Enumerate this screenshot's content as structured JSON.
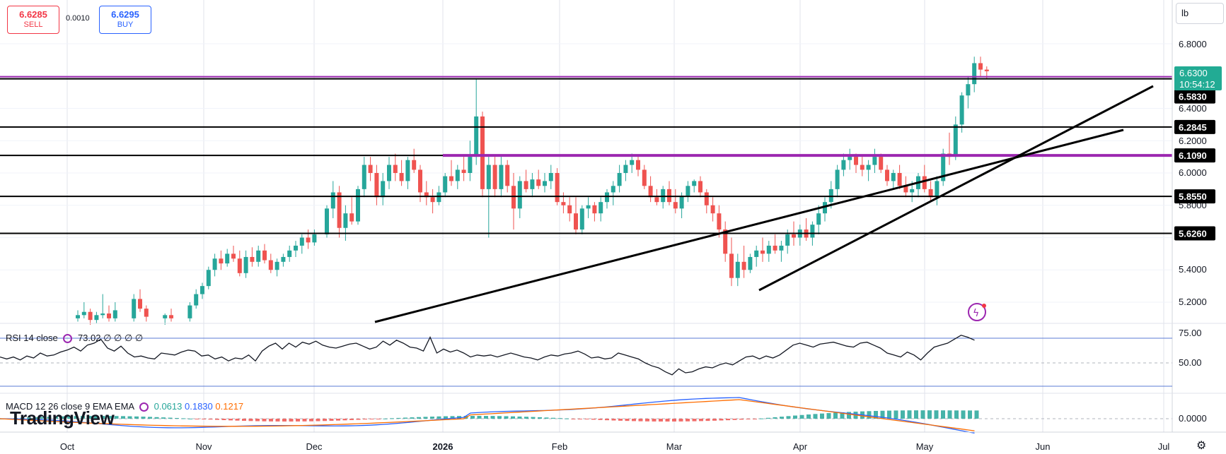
{
  "header": {
    "sell_price": "6.6285",
    "sell_label": "SELL",
    "spread": "0.0010",
    "buy_price": "6.6295",
    "buy_label": "BUY",
    "unit": "lb"
  },
  "rsi_legend": {
    "name": "RSI 14 close",
    "value": "73.02",
    "extra": "∅ ∅ ∅ ∅"
  },
  "macd_legend": {
    "name": "MACD 12 26 close 9 EMA EMA",
    "v1": "0.0613",
    "v2": "0.1830",
    "v3": "0.1217"
  },
  "branding": {
    "logo": "TradingView"
  },
  "colors": {
    "up": "#26a69a",
    "down": "#ef5350",
    "purple": "#9c27b0",
    "macd": "#2962ff",
    "signal": "#ff6d00",
    "blue_line": "#5b7bd5"
  },
  "chart_data": {
    "type": "candlestick",
    "price_axis": {
      "ticks": [
        "6.8000",
        "6.4000",
        "6.2000",
        "6.0000",
        "5.8000",
        "5.4000",
        "5.2000"
      ],
      "range": [
        5.05,
        6.85
      ]
    },
    "time_axis": {
      "ticks": [
        "Oct",
        "Nov",
        "Dec",
        "2026",
        "Feb",
        "Mar",
        "Apr",
        "May",
        "Jun",
        "Jul"
      ]
    },
    "current_price": {
      "value": "6.6300",
      "countdown": "10:54:12"
    },
    "level_labels": [
      "6.5830",
      "6.2845",
      "6.1090",
      "5.8550",
      "5.6260"
    ],
    "candles": [
      [
        0,
        5.1,
        5.15,
        5.08,
        5.12
      ],
      [
        1,
        5.12,
        5.2,
        5.1,
        5.14
      ],
      [
        2,
        5.14,
        5.16,
        5.06,
        5.09
      ],
      [
        3,
        5.09,
        5.14,
        5.07,
        5.12
      ],
      [
        4,
        5.12,
        5.25,
        5.1,
        5.13
      ],
      [
        5,
        5.13,
        5.18,
        5.08,
        5.1
      ],
      [
        6,
        5.1,
        5.2,
        5.08,
        5.15
      ],
      [
        9,
        5.1,
        5.25,
        5.08,
        5.22
      ],
      [
        10,
        5.22,
        5.28,
        5.14,
        5.16
      ],
      [
        11,
        5.16,
        5.18,
        5.08,
        5.11
      ],
      [
        14,
        5.1,
        5.13,
        5.06,
        5.12
      ],
      [
        15,
        5.12,
        5.16,
        5.08,
        5.1
      ],
      [
        18,
        5.1,
        5.2,
        5.08,
        5.18
      ],
      [
        19,
        5.18,
        5.28,
        5.16,
        5.25
      ],
      [
        20,
        5.25,
        5.32,
        5.22,
        5.3
      ],
      [
        21,
        5.3,
        5.42,
        5.28,
        5.4
      ],
      [
        22,
        5.4,
        5.5,
        5.36,
        5.47
      ],
      [
        23,
        5.47,
        5.52,
        5.4,
        5.44
      ],
      [
        24,
        5.44,
        5.53,
        5.42,
        5.5
      ],
      [
        25,
        5.5,
        5.55,
        5.45,
        5.47
      ],
      [
        26,
        5.47,
        5.52,
        5.36,
        5.38
      ],
      [
        27,
        5.38,
        5.52,
        5.35,
        5.48
      ],
      [
        28,
        5.48,
        5.54,
        5.42,
        5.45
      ],
      [
        29,
        5.45,
        5.55,
        5.42,
        5.52
      ],
      [
        30,
        5.52,
        5.56,
        5.44,
        5.46
      ],
      [
        31,
        5.46,
        5.5,
        5.38,
        5.4
      ],
      [
        32,
        5.4,
        5.47,
        5.36,
        5.45
      ],
      [
        33,
        5.45,
        5.5,
        5.42,
        5.48
      ],
      [
        34,
        5.48,
        5.55,
        5.45,
        5.52
      ],
      [
        35,
        5.52,
        5.58,
        5.48,
        5.55
      ],
      [
        36,
        5.55,
        5.62,
        5.5,
        5.6
      ],
      [
        37,
        5.6,
        5.65,
        5.53,
        5.57
      ],
      [
        38,
        5.57,
        5.65,
        5.55,
        5.62
      ],
      [
        40,
        5.62,
        5.8,
        5.6,
        5.78
      ],
      [
        41,
        5.78,
        5.95,
        5.72,
        5.88
      ],
      [
        42,
        5.88,
        5.92,
        5.6,
        5.66
      ],
      [
        43,
        5.66,
        5.8,
        5.58,
        5.75
      ],
      [
        44,
        5.75,
        5.85,
        5.68,
        5.7
      ],
      [
        45,
        5.7,
        5.92,
        5.68,
        5.9
      ],
      [
        46,
        5.9,
        6.1,
        5.85,
        6.05
      ],
      [
        47,
        6.05,
        6.1,
        5.95,
        6.0
      ],
      [
        48,
        6.0,
        6.05,
        5.8,
        5.85
      ],
      [
        49,
        5.85,
        6.0,
        5.8,
        5.95
      ],
      [
        50,
        5.95,
        6.1,
        5.9,
        6.05
      ],
      [
        51,
        6.05,
        6.12,
        5.95,
        6.0
      ],
      [
        52,
        6.0,
        6.08,
        5.92,
        5.95
      ],
      [
        53,
        5.95,
        6.1,
        5.9,
        6.08
      ],
      [
        54,
        6.08,
        6.15,
        6.0,
        6.02
      ],
      [
        55,
        6.02,
        6.05,
        5.82,
        5.88
      ],
      [
        56,
        5.88,
        5.95,
        5.8,
        5.85
      ],
      [
        57,
        5.85,
        5.9,
        5.75,
        5.82
      ],
      [
        58,
        5.82,
        5.92,
        5.8,
        5.88
      ],
      [
        59,
        5.88,
        6.0,
        5.85,
        5.98
      ],
      [
        60,
        5.98,
        6.08,
        5.92,
        5.95
      ],
      [
        61,
        5.95,
        6.05,
        5.9,
        6.02
      ],
      [
        62,
        6.02,
        6.1,
        5.95,
        6.0
      ],
      [
        63,
        6.0,
        6.2,
        5.95,
        6.1
      ],
      [
        64,
        6.1,
        6.58,
        6.05,
        6.35
      ],
      [
        65,
        6.35,
        6.38,
        5.85,
        5.9
      ],
      [
        66,
        5.9,
        6.1,
        5.6,
        6.05
      ],
      [
        67,
        6.05,
        6.1,
        5.85,
        5.9
      ],
      [
        68,
        5.9,
        6.1,
        5.85,
        6.05
      ],
      [
        69,
        6.05,
        6.08,
        5.88,
        5.92
      ],
      [
        70,
        5.92,
        6.0,
        5.65,
        5.78
      ],
      [
        71,
        5.78,
        5.98,
        5.72,
        5.95
      ],
      [
        72,
        5.95,
        6.02,
        5.88,
        5.9
      ],
      [
        73,
        5.9,
        6.0,
        5.85,
        5.96
      ],
      [
        74,
        5.96,
        6.02,
        5.9,
        5.92
      ],
      [
        75,
        5.92,
        6.0,
        5.88,
        5.95
      ],
      [
        76,
        5.95,
        6.05,
        5.9,
        6.0
      ],
      [
        77,
        6.0,
        6.03,
        5.8,
        5.82
      ],
      [
        78,
        5.82,
        5.88,
        5.75,
        5.8
      ],
      [
        79,
        5.8,
        5.85,
        5.7,
        5.75
      ],
      [
        80,
        5.75,
        5.85,
        5.62,
        5.65
      ],
      [
        81,
        5.65,
        5.8,
        5.62,
        5.78
      ],
      [
        82,
        5.78,
        5.85,
        5.72,
        5.8
      ],
      [
        83,
        5.8,
        5.82,
        5.7,
        5.75
      ],
      [
        84,
        5.75,
        5.85,
        5.7,
        5.82
      ],
      [
        85,
        5.82,
        5.9,
        5.78,
        5.88
      ],
      [
        86,
        5.88,
        5.95,
        5.8,
        5.92
      ],
      [
        87,
        5.92,
        6.05,
        5.88,
        6.0
      ],
      [
        88,
        6.0,
        6.08,
        5.95,
        6.05
      ],
      [
        89,
        6.05,
        6.12,
        6.0,
        6.08
      ],
      [
        90,
        6.08,
        6.1,
        5.98,
        6.02
      ],
      [
        91,
        6.02,
        6.05,
        5.9,
        5.92
      ],
      [
        92,
        5.92,
        5.98,
        5.82,
        5.85
      ],
      [
        93,
        5.85,
        5.9,
        5.8,
        5.82
      ],
      [
        94,
        5.82,
        5.92,
        5.78,
        5.9
      ],
      [
        95,
        5.9,
        5.95,
        5.8,
        5.82
      ],
      [
        96,
        5.82,
        5.9,
        5.75,
        5.78
      ],
      [
        97,
        5.78,
        5.88,
        5.72,
        5.86
      ],
      [
        98,
        5.86,
        5.95,
        5.82,
        5.92
      ],
      [
        99,
        5.92,
        5.96,
        5.88,
        5.95
      ],
      [
        100,
        5.95,
        5.98,
        5.85,
        5.88
      ],
      [
        101,
        5.88,
        5.9,
        5.75,
        5.8
      ],
      [
        102,
        5.8,
        5.85,
        5.7,
        5.75
      ],
      [
        103,
        5.75,
        5.8,
        5.6,
        5.65
      ],
      [
        104,
        5.65,
        5.7,
        5.45,
        5.5
      ],
      [
        105,
        5.5,
        5.6,
        5.3,
        5.35
      ],
      [
        106,
        5.35,
        5.5,
        5.3,
        5.45
      ],
      [
        107,
        5.45,
        5.55,
        5.35,
        5.4
      ],
      [
        108,
        5.4,
        5.5,
        5.38,
        5.48
      ],
      [
        109,
        5.48,
        5.55,
        5.42,
        5.52
      ],
      [
        110,
        5.52,
        5.6,
        5.45,
        5.5
      ],
      [
        111,
        5.5,
        5.58,
        5.45,
        5.55
      ],
      [
        112,
        5.55,
        5.62,
        5.5,
        5.52
      ],
      [
        113,
        5.52,
        5.58,
        5.45,
        5.55
      ],
      [
        114,
        5.55,
        5.65,
        5.5,
        5.62
      ],
      [
        115,
        5.62,
        5.7,
        5.55,
        5.6
      ],
      [
        116,
        5.6,
        5.68,
        5.55,
        5.65
      ],
      [
        117,
        5.65,
        5.72,
        5.58,
        5.6
      ],
      [
        118,
        5.6,
        5.7,
        5.55,
        5.68
      ],
      [
        119,
        5.68,
        5.8,
        5.62,
        5.75
      ],
      [
        120,
        5.75,
        5.85,
        5.7,
        5.82
      ],
      [
        121,
        5.82,
        5.95,
        5.78,
        5.9
      ],
      [
        122,
        5.9,
        6.05,
        5.85,
        6.02
      ],
      [
        123,
        6.02,
        6.12,
        5.98,
        6.08
      ],
      [
        124,
        6.08,
        6.15,
        6.02,
        6.1
      ],
      [
        125,
        6.1,
        6.12,
        6.0,
        6.05
      ],
      [
        126,
        6.05,
        6.1,
        5.98,
        6.02
      ],
      [
        127,
        6.02,
        6.08,
        5.95,
        6.05
      ],
      [
        128,
        6.05,
        6.15,
        6.0,
        6.1
      ],
      [
        129,
        6.1,
        6.12,
        6.0,
        6.02
      ],
      [
        130,
        6.02,
        6.05,
        5.92,
        5.95
      ],
      [
        131,
        5.95,
        6.02,
        5.9,
        6.0
      ],
      [
        132,
        6.0,
        6.05,
        5.9,
        5.92
      ],
      [
        133,
        5.92,
        5.98,
        5.85,
        5.88
      ],
      [
        134,
        5.88,
        5.95,
        5.82,
        5.9
      ],
      [
        135,
        5.9,
        6.0,
        5.85,
        5.98
      ],
      [
        136,
        5.98,
        6.05,
        5.88,
        5.9
      ],
      [
        137,
        5.9,
        5.95,
        5.82,
        5.85
      ],
      [
        138,
        5.85,
        5.98,
        5.8,
        5.95
      ],
      [
        139,
        5.95,
        6.15,
        5.92,
        6.12
      ],
      [
        140,
        6.12,
        6.25,
        6.05,
        6.1
      ],
      [
        141,
        6.1,
        6.35,
        6.08,
        6.3
      ],
      [
        142,
        6.3,
        6.5,
        6.25,
        6.48
      ],
      [
        143,
        6.48,
        6.6,
        6.4,
        6.55
      ],
      [
        144,
        6.55,
        6.72,
        6.5,
        6.68
      ],
      [
        145,
        6.68,
        6.72,
        6.6,
        6.64
      ],
      [
        146,
        6.64,
        6.66,
        6.58,
        6.63
      ]
    ],
    "horizontal_levels": [
      6.583,
      6.2845,
      6.109,
      5.855,
      5.626
    ],
    "rsi": {
      "ticks": [
        "75.00",
        "50.00"
      ],
      "values": [
        56,
        54,
        56,
        53,
        57,
        55,
        60,
        57,
        58,
        61,
        63,
        66,
        62,
        68,
        70,
        74,
        65,
        62,
        67,
        60,
        56,
        57,
        55,
        54,
        60,
        59,
        58,
        61,
        63,
        62,
        57,
        58,
        54,
        56,
        52,
        55,
        54,
        58,
        52,
        62,
        67,
        70,
        64,
        70,
        66,
        71,
        69,
        72,
        68,
        66,
        65,
        67,
        69,
        70,
        67,
        64,
        66,
        72,
        68,
        73,
        70,
        66,
        65,
        62,
        76,
        60,
        64,
        61,
        63,
        60,
        56,
        58,
        57,
        58,
        56,
        58,
        60,
        58,
        56,
        55,
        53,
        56,
        58,
        57,
        59,
        60,
        62,
        59,
        55,
        56,
        54,
        55,
        60,
        58,
        56,
        54,
        50,
        47,
        45,
        41,
        38,
        44,
        40,
        41,
        44,
        46,
        45,
        48,
        50,
        48,
        52,
        56,
        57,
        54,
        57,
        55,
        58,
        63,
        68,
        70,
        68,
        66,
        69,
        70,
        71,
        69,
        67,
        66,
        70,
        71,
        68,
        65,
        60,
        58,
        56,
        61,
        58,
        53,
        60,
        66,
        68,
        70,
        74,
        78,
        76,
        73
      ]
    },
    "macd": {
      "ticks": [
        "0.0000"
      ],
      "v1": "0.0613",
      "v2": "0.1830",
      "v3": "0.1217"
    }
  }
}
